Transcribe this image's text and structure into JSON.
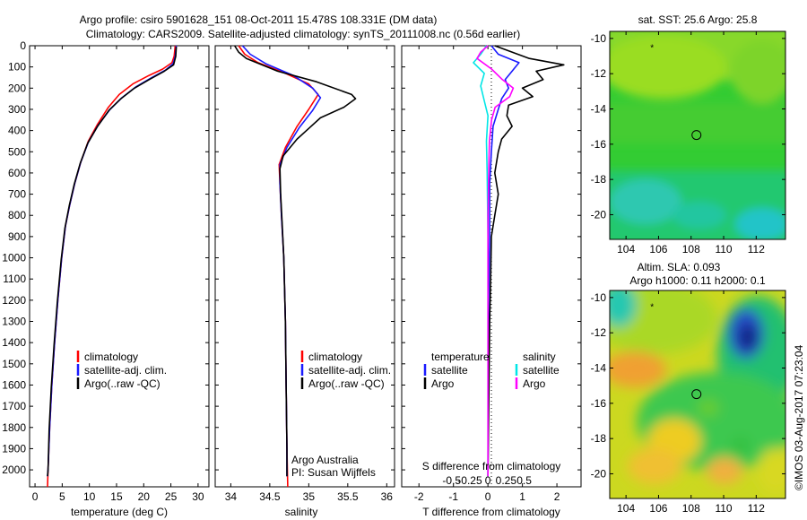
{
  "title": {
    "line1": "Argo profile: csiro 5901628_151 08-Oct-2011 15.478S 108.331E (DM data)",
    "line2": "Climatology: CARS2009. Satellite-adjusted climatology: synTS_20111008.nc (0.56d earlier)"
  },
  "colors": {
    "climatology": "#ff0000",
    "satellite": "#1a1aff",
    "argo": "#000000",
    "salinity_satellite": "#00e6e6",
    "salinity_argo": "#ff00ff"
  },
  "chart_data": [
    {
      "type": "line",
      "panel": "temperature",
      "xlabel": "temperature (deg C)",
      "xlim": [
        -1,
        32
      ],
      "xticks": [
        "0",
        "5",
        "10",
        "15",
        "20",
        "25",
        "30"
      ],
      "xtick_values": [
        0,
        5,
        10,
        15,
        20,
        25,
        30
      ],
      "ylim": [
        2080,
        0
      ],
      "yticks": [
        "0",
        "100",
        "200",
        "300",
        "400",
        "500",
        "600",
        "700",
        "800",
        "900",
        "1000",
        "1100",
        "1200",
        "1300",
        "1400",
        "1500",
        "1600",
        "1700",
        "1800",
        "1900",
        "2000"
      ],
      "ytick_values": [
        0,
        100,
        200,
        300,
        400,
        500,
        600,
        700,
        800,
        900,
        1000,
        1100,
        1200,
        1300,
        1400,
        1500,
        1600,
        1700,
        1800,
        1900,
        2000
      ],
      "legend": [
        "climatology",
        "satellite-adj. clim.",
        "Argo(..raw -QC)"
      ],
      "series": [
        {
          "name": "climatology",
          "color": "#ff0000",
          "points": [
            [
              25.8,
              0
            ],
            [
              25.6,
              50
            ],
            [
              25.2,
              80
            ],
            [
              23.5,
              110
            ],
            [
              21,
              140
            ],
            [
              18,
              180
            ],
            [
              15.5,
              230
            ],
            [
              13.5,
              290
            ],
            [
              11.5,
              370
            ],
            [
              9.8,
              450
            ],
            [
              8.4,
              550
            ],
            [
              7.3,
              650
            ],
            [
              6.4,
              750
            ],
            [
              5.6,
              850
            ],
            [
              4.9,
              1000
            ],
            [
              4.2,
              1200
            ],
            [
              3.6,
              1400
            ],
            [
              3.1,
              1600
            ],
            [
              2.7,
              1800
            ],
            [
              2.4,
              2000
            ],
            [
              2.3,
              2080
            ]
          ]
        },
        {
          "name": "satellite-adj. clim.",
          "color": "#1a1aff",
          "points": [
            [
              26,
              0
            ],
            [
              25.8,
              50
            ],
            [
              25.4,
              85
            ],
            [
              24,
              115
            ],
            [
              21.5,
              150
            ],
            [
              18.5,
              195
            ],
            [
              16,
              245
            ],
            [
              13.8,
              300
            ],
            [
              11.6,
              375
            ],
            [
              9.8,
              455
            ],
            [
              8.4,
              550
            ],
            [
              7.3,
              650
            ],
            [
              6.4,
              750
            ],
            [
              5.6,
              850
            ],
            [
              4.9,
              1000
            ],
            [
              4.2,
              1200
            ],
            [
              3.6,
              1400
            ],
            [
              3.1,
              1600
            ],
            [
              2.7,
              1800
            ],
            [
              2.4,
              2000
            ],
            [
              2.3,
              2030
            ]
          ]
        },
        {
          "name": "Argo(..raw -QC)",
          "color": "#000000",
          "points": [
            [
              26,
              5
            ],
            [
              25.9,
              50
            ],
            [
              25.5,
              90
            ],
            [
              23.8,
              120
            ],
            [
              21,
              160
            ],
            [
              18.3,
              200
            ],
            [
              15.8,
              250
            ],
            [
              13.6,
              305
            ],
            [
              11.5,
              380
            ],
            [
              9.7,
              460
            ],
            [
              8.3,
              555
            ],
            [
              7.2,
              655
            ],
            [
              6.3,
              755
            ],
            [
              5.5,
              860
            ],
            [
              4.8,
              1010
            ],
            [
              4.1,
              1210
            ],
            [
              3.5,
              1410
            ],
            [
              3.0,
              1610
            ],
            [
              2.6,
              1810
            ],
            [
              2.4,
              2000
            ],
            [
              2.3,
              2030
            ]
          ]
        }
      ]
    },
    {
      "type": "line",
      "panel": "salinity",
      "xlabel": "salinity",
      "xlim": [
        33.8,
        36.1
      ],
      "xticks": [
        "34",
        "34.5",
        "35",
        "35.5",
        "36"
      ],
      "xtick_values": [
        34,
        34.5,
        35,
        35.5,
        36
      ],
      "ylim": [
        2080,
        0
      ],
      "legend": [
        "climatology",
        "satellite-adj. clim.",
        "Argo(..raw -QC)"
      ],
      "annotation": [
        "Argo Australia",
        "PI: Susan Wijffels"
      ],
      "series": [
        {
          "name": "climatology",
          "color": "#ff0000",
          "points": [
            [
              34.1,
              0
            ],
            [
              34.18,
              40
            ],
            [
              34.35,
              80
            ],
            [
              34.7,
              130
            ],
            [
              35.0,
              180
            ],
            [
              35.12,
              230
            ],
            [
              35.0,
              300
            ],
            [
              34.85,
              380
            ],
            [
              34.7,
              480
            ],
            [
              34.62,
              560
            ],
            [
              34.63,
              650
            ],
            [
              34.65,
              800
            ],
            [
              34.68,
              1000
            ],
            [
              34.7,
              1300
            ],
            [
              34.71,
              1600
            ],
            [
              34.72,
              1900
            ],
            [
              34.73,
              2080
            ]
          ]
        },
        {
          "name": "satellite-adj. clim.",
          "color": "#1a1aff",
          "points": [
            [
              34.15,
              0
            ],
            [
              34.25,
              40
            ],
            [
              34.45,
              85
            ],
            [
              34.8,
              140
            ],
            [
              35.05,
              200
            ],
            [
              35.15,
              245
            ],
            [
              35.05,
              305
            ],
            [
              34.88,
              385
            ],
            [
              34.72,
              480
            ],
            [
              34.63,
              560
            ],
            [
              34.63,
              650
            ],
            [
              34.65,
              800
            ],
            [
              34.68,
              1000
            ],
            [
              34.7,
              1300
            ],
            [
              34.71,
              1600
            ],
            [
              34.72,
              1900
            ],
            [
              34.72,
              2030
            ]
          ]
        },
        {
          "name": "Argo(..raw -QC)",
          "color": "#000000",
          "points": [
            [
              34.05,
              0
            ],
            [
              34.1,
              30
            ],
            [
              34.2,
              60
            ],
            [
              34.6,
              120
            ],
            [
              35.1,
              170
            ],
            [
              35.55,
              230
            ],
            [
              35.6,
              250
            ],
            [
              35.45,
              290
            ],
            [
              35.15,
              340
            ],
            [
              35.0,
              390
            ],
            [
              34.85,
              440
            ],
            [
              34.67,
              520
            ],
            [
              34.63,
              580
            ],
            [
              34.64,
              700
            ],
            [
              34.66,
              850
            ],
            [
              34.68,
              1000
            ],
            [
              34.7,
              1300
            ],
            [
              34.71,
              1600
            ],
            [
              34.72,
              1900
            ],
            [
              34.72,
              2030
            ]
          ]
        }
      ]
    },
    {
      "type": "line",
      "panel": "difference",
      "xlabel": "T difference from climatology",
      "xlabel2": "S difference from climatology",
      "xlim": [
        -2.5,
        2.7
      ],
      "xticks": [
        "-2",
        "-1",
        "0",
        "1",
        "2"
      ],
      "xtick_values": [
        -2,
        -1,
        0,
        1,
        2
      ],
      "xticks2": [
        "-0.5",
        "-0.25",
        "0",
        "0.25",
        "0.5"
      ],
      "xtick2_values": [
        -0.5,
        -0.25,
        0,
        0.25,
        0.5
      ],
      "legend_temperature": {
        "heading": "temperature",
        "items": [
          "satellite",
          "Argo"
        ]
      },
      "legend_salinity": {
        "heading": "salinity",
        "items": [
          "satellite",
          "Argo"
        ]
      },
      "ylim": [
        2080,
        0
      ],
      "series": [
        {
          "name": "T satellite",
          "color": "#1a1aff",
          "points": [
            [
              0.1,
              0
            ],
            [
              0.3,
              40
            ],
            [
              0.9,
              80
            ],
            [
              0.7,
              120
            ],
            [
              0.5,
              160
            ],
            [
              0.6,
              200
            ],
            [
              0.4,
              250
            ],
            [
              0.3,
              300
            ],
            [
              0.15,
              380
            ],
            [
              0.1,
              500
            ],
            [
              0.05,
              650
            ],
            [
              0.05,
              900
            ],
            [
              0.02,
              1200
            ],
            [
              0.01,
              1600
            ],
            [
              0,
              2030
            ]
          ]
        },
        {
          "name": "T Argo",
          "color": "#000000",
          "points": [
            [
              0.2,
              0
            ],
            [
              1.2,
              60
            ],
            [
              2.2,
              90
            ],
            [
              1.4,
              120
            ],
            [
              1.6,
              160
            ],
            [
              1.0,
              200
            ],
            [
              1.3,
              240
            ],
            [
              0.6,
              280
            ],
            [
              0.55,
              330
            ],
            [
              0.7,
              380
            ],
            [
              0.4,
              440
            ],
            [
              0.3,
              500
            ],
            [
              0.2,
              600
            ],
            [
              0.3,
              700
            ],
            [
              0.2,
              800
            ],
            [
              0.1,
              900
            ],
            [
              0.08,
              1100
            ],
            [
              0.05,
              1300
            ],
            [
              0.03,
              1600
            ],
            [
              0.0,
              2030
            ]
          ]
        },
        {
          "name": "S satellite",
          "color": "#00e6e6",
          "points": [
            [
              -0.02,
              0
            ],
            [
              -0.1,
              40
            ],
            [
              -0.2,
              80
            ],
            [
              -0.05,
              130
            ],
            [
              -0.1,
              190
            ],
            [
              -0.05,
              260
            ],
            [
              0,
              330
            ],
            [
              -0.02,
              450
            ],
            [
              -0.01,
              600
            ],
            [
              0,
              900
            ],
            [
              0,
              1300
            ],
            [
              0,
              2030
            ]
          ]
        },
        {
          "name": "S Argo",
          "color": "#ff00ff",
          "points": [
            [
              0,
              0
            ],
            [
              -0.1,
              30
            ],
            [
              -0.15,
              60
            ],
            [
              0.05,
              110
            ],
            [
              0.2,
              160
            ],
            [
              0.35,
              200
            ],
            [
              0.3,
              240
            ],
            [
              0.1,
              290
            ],
            [
              0.05,
              350
            ],
            [
              0.02,
              450
            ],
            [
              0.01,
              600
            ],
            [
              0,
              800
            ],
            [
              0,
              1200
            ],
            [
              0,
              2030
            ]
          ]
        }
      ]
    },
    {
      "type": "heatmap",
      "panel": "sst_map",
      "title": "sat. SST: 25.6 Argo: 25.8",
      "xlim": [
        103,
        113.8
      ],
      "ylim": [
        -21.4,
        -9.6
      ],
      "xticks": [
        "104",
        "106",
        "108",
        "110",
        "112"
      ],
      "xtick_values": [
        104,
        106,
        108,
        110,
        112
      ],
      "yticks": [
        "-10",
        "-12",
        "-14",
        "-16",
        "-18",
        "-20"
      ],
      "ytick_values": [
        -10,
        -12,
        -14,
        -16,
        -18,
        -20
      ],
      "profile_location": [
        108.33,
        -15.48
      ],
      "previous_location": [
        105.6,
        -10.5
      ]
    },
    {
      "type": "heatmap",
      "panel": "sla_map",
      "title_line1": "Altim. SLA: 0.093",
      "title_line2": "Argo h1000: 0.11 h2000: 0.1",
      "xlim": [
        103,
        113.8
      ],
      "ylim": [
        -21.4,
        -9.6
      ],
      "xticks": [
        "104",
        "106",
        "108",
        "110",
        "112"
      ],
      "xtick_values": [
        104,
        106,
        108,
        110,
        112
      ],
      "yticks": [
        "-10",
        "-12",
        "-14",
        "-16",
        "-18",
        "-20"
      ],
      "ytick_values": [
        -10,
        -12,
        -14,
        -16,
        -18,
        -20
      ],
      "profile_location": [
        108.33,
        -15.48
      ],
      "previous_location": [
        105.6,
        -10.5
      ]
    }
  ],
  "credit": "©IMOS 03-Aug-2017 07:23:04"
}
